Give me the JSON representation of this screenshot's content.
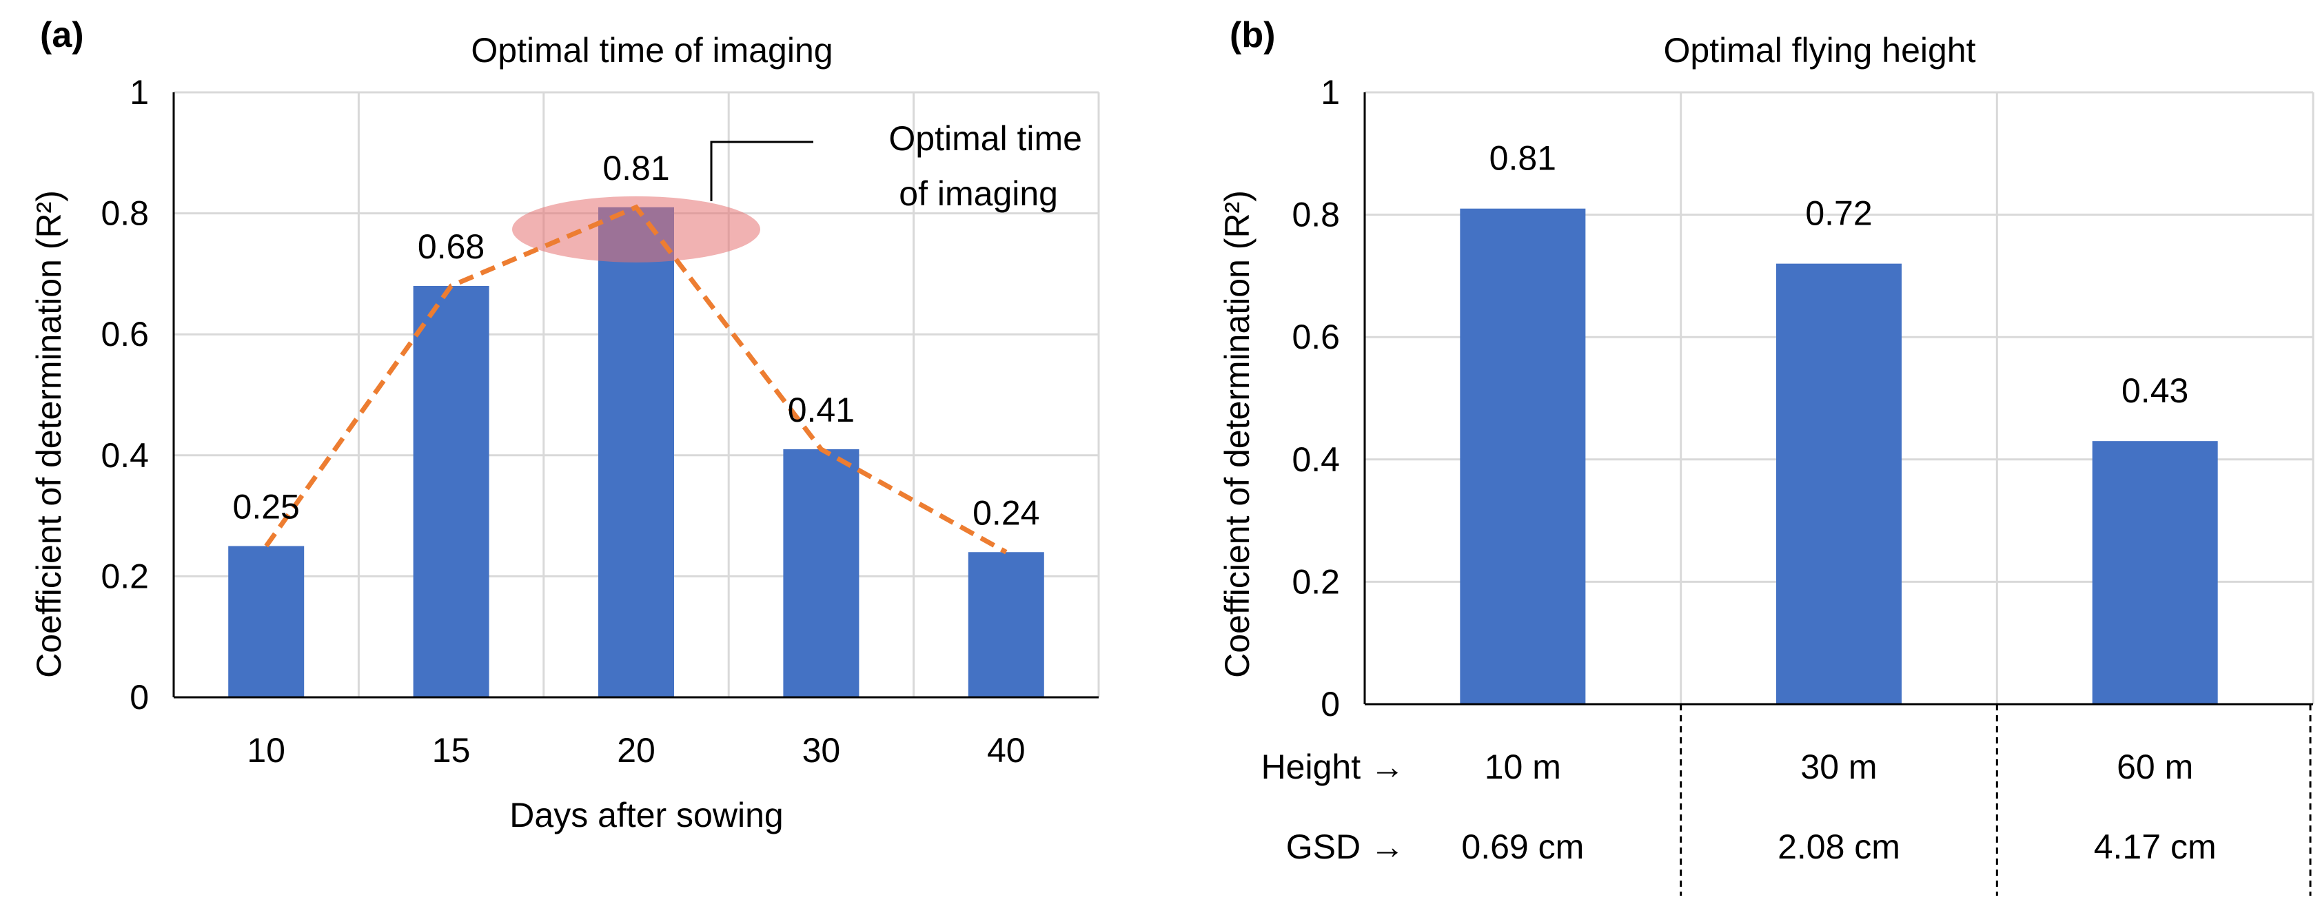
{
  "chart_data": [
    {
      "panel": "(a)",
      "type": "bar",
      "title": "Optimal time of imaging",
      "xlabel": "Days after sowing",
      "ylabel": "Coefficient of determination (R²)",
      "ylim": [
        0,
        1
      ],
      "yticks": [
        "0",
        "0.2",
        "0.4",
        "0.6",
        "0.8",
        "1"
      ],
      "categories": [
        "10",
        "15",
        "20",
        "30",
        "40"
      ],
      "values": [
        0.25,
        0.68,
        0.81,
        0.41,
        0.24
      ],
      "data_labels": [
        "0.25",
        "0.68",
        "0.81",
        "0.41",
        "0.24"
      ],
      "overlay_line": {
        "style": "dashed",
        "values": [
          0.25,
          0.68,
          0.81,
          0.41,
          0.24
        ]
      },
      "annotation": {
        "line1": "Optimal time",
        "line2": "of imaging",
        "target_category": "20"
      },
      "grid": true,
      "bar_color": "#4472C4",
      "line_color": "#ED7D31",
      "highlight_color": "#E57373"
    },
    {
      "panel": "(b)",
      "type": "bar",
      "title": "Optimal flying height",
      "ylabel": "Coefficient of determination (R²)",
      "ylim": [
        0,
        1
      ],
      "yticks": [
        "0",
        "0.2",
        "0.4",
        "0.6",
        "0.8",
        "1"
      ],
      "categories": [
        "10 m",
        "30 m",
        "60 m"
      ],
      "values": [
        0.81,
        0.72,
        0.43
      ],
      "data_labels": [
        "0.81",
        "0.72",
        "0.43"
      ],
      "rows": [
        {
          "label": "Height →",
          "values": [
            "10 m",
            "30 m",
            "60 m"
          ]
        },
        {
          "label": "GSD →",
          "values": [
            "0.69 cm",
            "2.08 cm",
            "4.17 cm"
          ]
        }
      ],
      "grid": true,
      "bar_color": "#4472C4"
    }
  ]
}
